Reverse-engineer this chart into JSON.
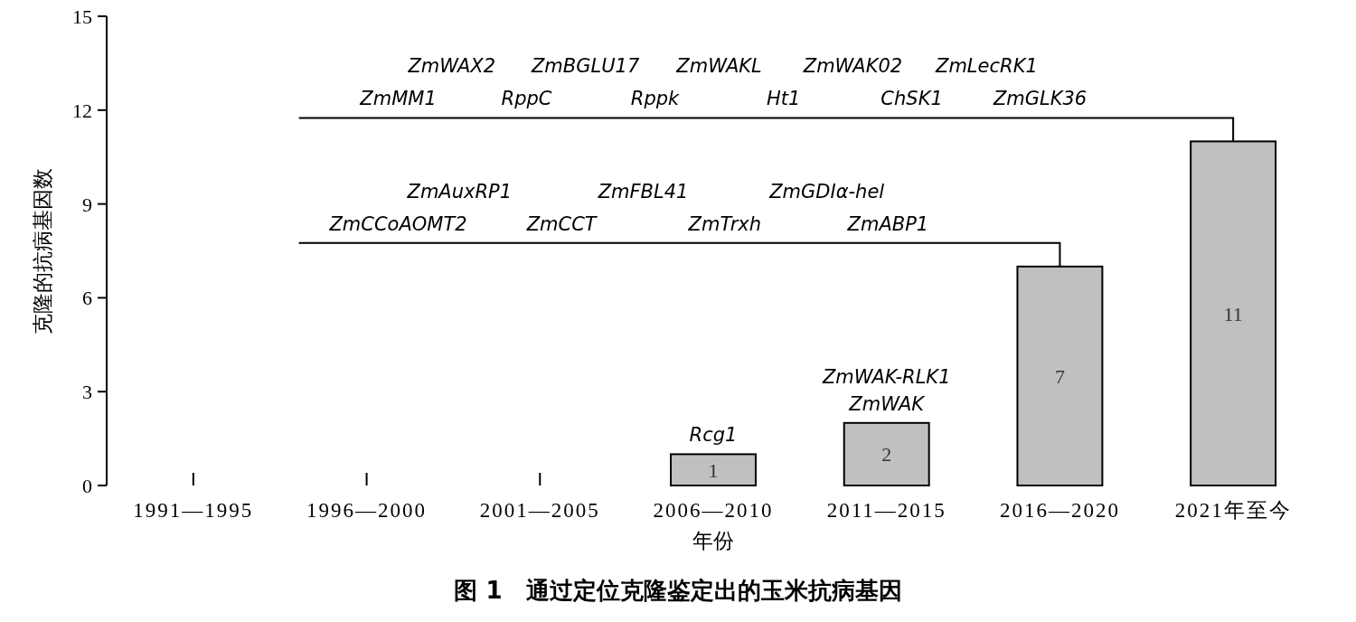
{
  "chart_data": {
    "type": "bar",
    "title": "图 1　通过定位克隆鉴定出的玉米抗病基因",
    "xlabel": "年份",
    "ylabel": "克隆的抗病基因数",
    "categories": [
      "1991—1995",
      "1996—2000",
      "2001—2005",
      "2006—2010",
      "2011—2015",
      "2016—2020",
      "2021年至今"
    ],
    "values": [
      0,
      0,
      0,
      1,
      2,
      7,
      11
    ],
    "color": "#c0c0c0",
    "value_labels": [
      null,
      null,
      null,
      "1",
      "2",
      "7",
      "11"
    ],
    "ylim": [
      0,
      15
    ],
    "yticks": [
      0,
      3,
      6,
      9,
      12,
      15
    ],
    "annotations": [
      {
        "text": "Rcg1",
        "x": "2006—2010",
        "y": 1
      },
      {
        "text": "ZmWAK-RLK1",
        "x": "2011—2015",
        "y": 2
      },
      {
        "text": "ZmWAK",
        "x": "2011—2015",
        "y": 2
      },
      "ZmWAX2",
      "ZmBGLU17",
      "ZmWAKL",
      "ZmWAK02",
      "ZmLecRK1",
      "ZmMM1",
      "RppC",
      "Rppk",
      "Ht1",
      "ChSK1",
      "ZmGLK36",
      "ZmAuxRP1",
      "ZmFBL41",
      "ZmGDIα-hel",
      "ZmCCoAOMT2",
      "ZmCCT",
      "ZmTrxh",
      "ZmABP1"
    ]
  }
}
